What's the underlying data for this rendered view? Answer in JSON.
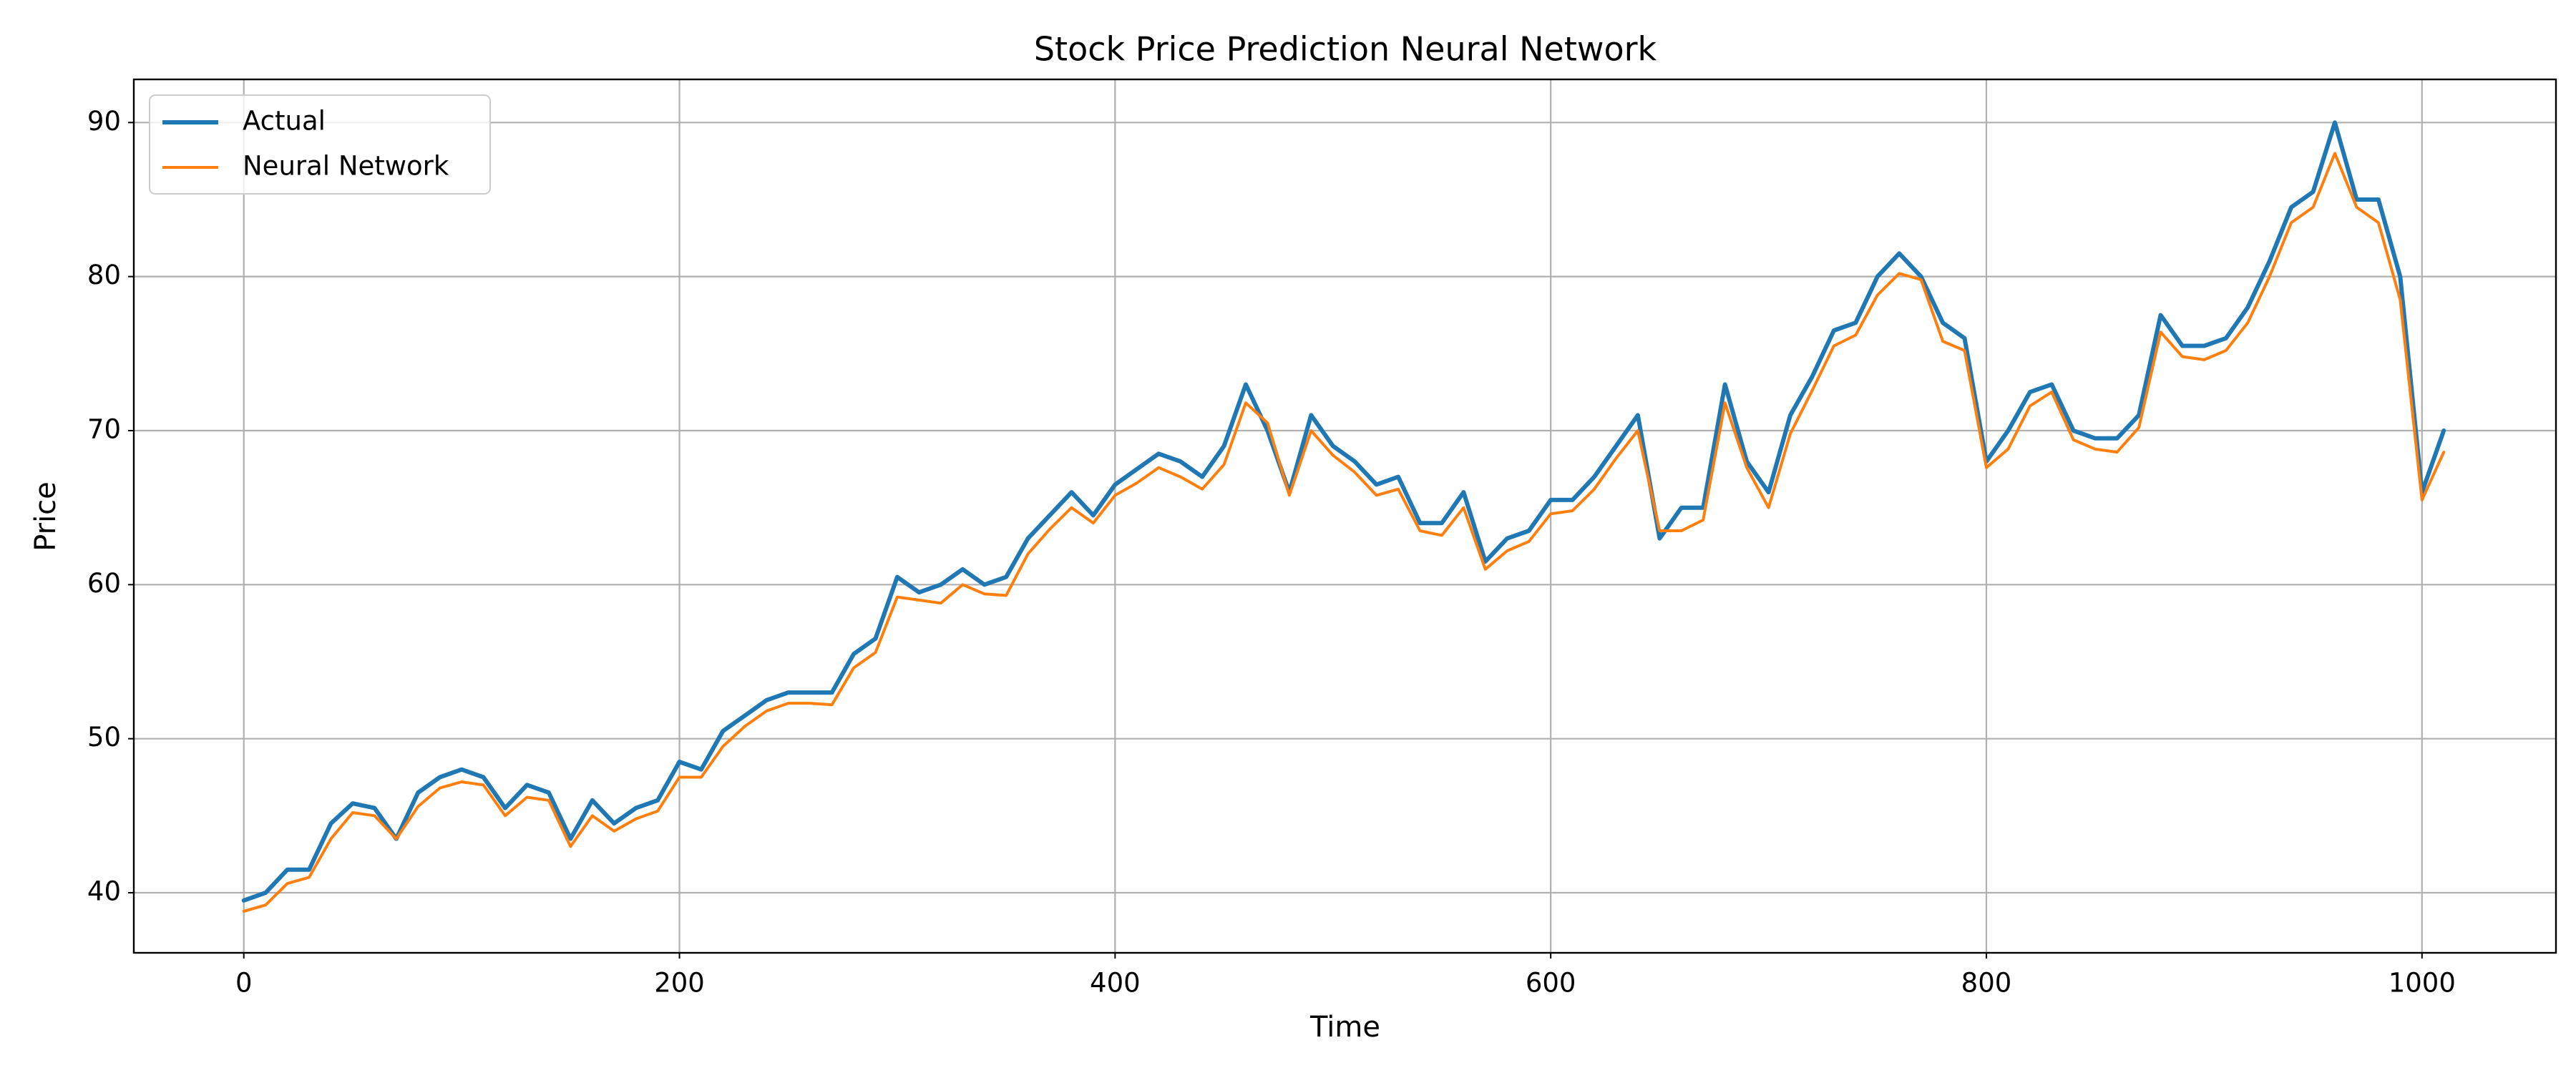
{
  "chart_data": {
    "type": "line",
    "title": "Stock Price Prediction Neural Network",
    "x_label": "Time",
    "y_label": "Price",
    "x": [
      0,
      10,
      20,
      30,
      40,
      50,
      60,
      70,
      80,
      90,
      100,
      110,
      120,
      130,
      140,
      150,
      160,
      170,
      180,
      190,
      200,
      210,
      220,
      230,
      240,
      250,
      260,
      270,
      280,
      290,
      300,
      310,
      320,
      330,
      340,
      350,
      360,
      370,
      380,
      390,
      400,
      410,
      420,
      430,
      440,
      450,
      460,
      470,
      480,
      490,
      500,
      510,
      520,
      530,
      540,
      550,
      560,
      570,
      580,
      590,
      600,
      610,
      620,
      630,
      640,
      650,
      660,
      670,
      680,
      690,
      700,
      710,
      720,
      730,
      740,
      750,
      760,
      770,
      780,
      790,
      800,
      810,
      820,
      830,
      840,
      850,
      860,
      870,
      880,
      890,
      900,
      910,
      920,
      930,
      940,
      950,
      960,
      970,
      980,
      990,
      1000,
      1010
    ],
    "series": [
      {
        "name": "Actual",
        "color": "#1f77b4",
        "values": [
          39.5,
          40,
          41.5,
          41.5,
          44.5,
          45.8,
          45.5,
          43.5,
          46.5,
          47.5,
          48,
          47.5,
          45.5,
          47,
          46.5,
          43.5,
          46,
          44.5,
          45.5,
          46,
          48.5,
          48,
          50.5,
          51.5,
          52.5,
          53,
          53,
          53,
          55.5,
          56.5,
          60.5,
          59.5,
          60,
          61,
          60,
          60.5,
          63,
          64.5,
          66,
          64.5,
          66.5,
          67.5,
          68.5,
          68,
          67,
          69,
          73,
          70,
          66,
          71,
          69,
          68,
          66.5,
          67,
          64,
          64,
          66,
          61.5,
          63,
          63.5,
          65.5,
          65.5,
          67,
          69,
          71,
          63,
          65,
          65,
          73,
          68,
          66,
          71,
          73.5,
          76.5,
          77,
          80,
          81.5,
          80,
          77,
          76,
          68,
          70,
          72.5,
          73,
          70,
          69.5,
          69.5,
          71,
          77.5,
          75.5,
          75.5,
          76,
          78,
          81,
          84.5,
          85.5,
          90,
          85,
          85,
          80,
          66,
          70
        ]
      },
      {
        "name": "Neural Network",
        "color": "#ff7f0e",
        "values": [
          38.8,
          39.2,
          40.6,
          41,
          43.5,
          45.2,
          45,
          43.5,
          45.6,
          46.8,
          47.2,
          47,
          45,
          46.2,
          46,
          43,
          45,
          44,
          44.8,
          45.3,
          47.5,
          47.5,
          49.5,
          50.8,
          51.8,
          52.3,
          52.3,
          52.2,
          54.6,
          55.6,
          59.2,
          59,
          58.8,
          60,
          59.4,
          59.3,
          62,
          63.6,
          65,
          64,
          65.8,
          66.6,
          67.6,
          67,
          66.2,
          67.8,
          71.8,
          70.5,
          65.8,
          70,
          68.4,
          67.3,
          65.8,
          66.2,
          63.5,
          63.2,
          65,
          61,
          62.2,
          62.8,
          64.6,
          64.8,
          66.2,
          68.2,
          70,
          63.5,
          63.5,
          64.2,
          71.8,
          67.6,
          65,
          69.8,
          72.6,
          75.5,
          76.2,
          78.8,
          80.2,
          79.8,
          75.8,
          75.2,
          67.6,
          68.8,
          71.6,
          72.5,
          69.4,
          68.8,
          68.6,
          70.2,
          76.4,
          74.8,
          74.6,
          75.2,
          77,
          80,
          83.5,
          84.5,
          88,
          84.5,
          83.5,
          78.5,
          65.5,
          68.6
        ]
      }
    ],
    "xlim": [
      -50.5,
      1061.5
    ],
    "xticks": [
      0,
      200,
      400,
      600,
      800,
      1000
    ],
    "ylim": [
      36.1,
      92.8
    ],
    "yticks": [
      40,
      50,
      60,
      70,
      80,
      90
    ],
    "grid": true,
    "legend": "upper left"
  }
}
